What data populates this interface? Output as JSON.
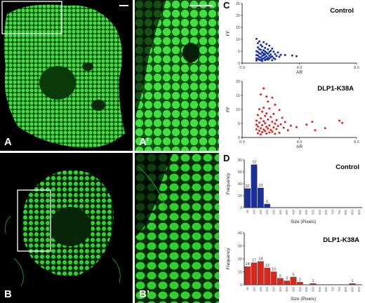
{
  "panels": {
    "A": "A",
    "A_prime": "A’",
    "B": "B",
    "B_prime": "B’",
    "C": "C",
    "D": "D"
  },
  "colors": {
    "control": "#1a2f9c",
    "mutant": "#d8281e",
    "cell": "#35d835",
    "background": "#000000"
  },
  "chart_data": [
    {
      "type": "scatter",
      "title": "Control",
      "xlabel": "AR",
      "ylabel": "FF",
      "xlim": [
        0,
        8
      ],
      "ylim": [
        0,
        25
      ],
      "xticks": [
        "0.0",
        "4.0",
        "8.0"
      ],
      "yticks": [
        "0",
        "5",
        "10",
        "15",
        "20",
        "25"
      ],
      "grid": false,
      "points": [
        [
          1.0,
          10.2
        ],
        [
          1.2,
          9.1
        ],
        [
          1.1,
          8.4
        ],
        [
          1.5,
          8.8
        ],
        [
          1.7,
          8.0
        ],
        [
          1.3,
          7.6
        ],
        [
          1.4,
          7.0
        ],
        [
          1.9,
          7.3
        ],
        [
          1.1,
          6.6
        ],
        [
          1.6,
          6.4
        ],
        [
          2.1,
          6.1
        ],
        [
          1.2,
          5.9
        ],
        [
          1.3,
          5.6
        ],
        [
          1.5,
          5.4
        ],
        [
          1.8,
          5.8
        ],
        [
          2.0,
          5.2
        ],
        [
          1.0,
          5.0
        ],
        [
          1.1,
          4.7
        ],
        [
          1.4,
          4.6
        ],
        [
          1.6,
          4.9
        ],
        [
          1.7,
          4.4
        ],
        [
          1.9,
          4.6
        ],
        [
          2.2,
          4.8
        ],
        [
          2.5,
          4.5
        ],
        [
          1.2,
          4.1
        ],
        [
          1.3,
          3.9
        ],
        [
          1.5,
          4.0
        ],
        [
          1.6,
          3.7
        ],
        [
          1.8,
          3.9
        ],
        [
          2.0,
          3.6
        ],
        [
          2.3,
          3.8
        ],
        [
          2.7,
          3.5
        ],
        [
          3.0,
          3.4
        ],
        [
          3.5,
          3.2
        ],
        [
          3.8,
          2.9
        ],
        [
          1.0,
          3.4
        ],
        [
          1.1,
          3.2
        ],
        [
          1.4,
          3.0
        ],
        [
          1.5,
          3.3
        ],
        [
          1.7,
          2.9
        ],
        [
          1.9,
          3.1
        ],
        [
          2.1,
          2.8
        ],
        [
          2.4,
          3.0
        ],
        [
          2.6,
          2.7
        ],
        [
          1.2,
          2.6
        ],
        [
          1.3,
          2.3
        ],
        [
          1.6,
          2.4
        ],
        [
          1.8,
          2.2
        ],
        [
          2.0,
          2.5
        ],
        [
          2.2,
          2.1
        ],
        [
          1.0,
          2.0
        ],
        [
          1.1,
          1.8
        ],
        [
          1.4,
          1.7
        ],
        [
          1.5,
          2.0
        ],
        [
          1.7,
          1.6
        ],
        [
          1.9,
          1.9
        ],
        [
          2.3,
          1.7
        ],
        [
          1.2,
          1.4
        ],
        [
          1.3,
          1.2
        ],
        [
          1.6,
          1.3
        ],
        [
          1.8,
          1.5
        ],
        [
          2.1,
          1.2
        ],
        [
          1.0,
          1.1
        ],
        [
          1.4,
          0.9
        ]
      ]
    },
    {
      "type": "scatter",
      "title": "DLP1-K38A",
      "xlabel": "AR",
      "ylabel": "FF",
      "xlim": [
        0,
        8
      ],
      "ylim": [
        0,
        20
      ],
      "xticks": [
        "0.0",
        "4.0",
        "8.0"
      ],
      "yticks": [
        "0",
        "5",
        "10",
        "15",
        "20"
      ],
      "grid": false,
      "points": [
        [
          1.5,
          17.5
        ],
        [
          1.3,
          15.3
        ],
        [
          1.7,
          14.6
        ],
        [
          2.1,
          14.2
        ],
        [
          1.8,
          12.8
        ],
        [
          2.3,
          11.7
        ],
        [
          1.5,
          10.6
        ],
        [
          1.2,
          10.1
        ],
        [
          1.9,
          10.3
        ],
        [
          2.6,
          9.8
        ],
        [
          1.4,
          9.2
        ],
        [
          1.7,
          8.6
        ],
        [
          2.2,
          8.4
        ],
        [
          1.1,
          8.0
        ],
        [
          1.6,
          7.7
        ],
        [
          2.0,
          7.3
        ],
        [
          2.8,
          7.0
        ],
        [
          1.3,
          6.8
        ],
        [
          1.8,
          6.4
        ],
        [
          2.4,
          6.2
        ],
        [
          1.0,
          6.0
        ],
        [
          1.5,
          5.8
        ],
        [
          2.1,
          5.6
        ],
        [
          3.0,
          5.5
        ],
        [
          1.2,
          5.3
        ],
        [
          1.6,
          5.1
        ],
        [
          2.3,
          4.9
        ],
        [
          2.7,
          4.7
        ],
        [
          1.0,
          4.6
        ],
        [
          1.4,
          4.4
        ],
        [
          1.9,
          4.3
        ],
        [
          2.5,
          4.1
        ],
        [
          3.4,
          4.2
        ],
        [
          1.1,
          3.9
        ],
        [
          1.7,
          3.8
        ],
        [
          2.2,
          3.6
        ],
        [
          2.9,
          3.5
        ],
        [
          1.3,
          3.3
        ],
        [
          1.8,
          3.2
        ],
        [
          2.4,
          3.0
        ],
        [
          1.0,
          2.9
        ],
        [
          1.5,
          2.8
        ],
        [
          2.0,
          2.7
        ],
        [
          3.2,
          2.6
        ],
        [
          1.2,
          2.4
        ],
        [
          1.6,
          2.3
        ],
        [
          2.1,
          2.1
        ],
        [
          1.4,
          1.9
        ],
        [
          1.9,
          1.8
        ],
        [
          2.6,
          1.7
        ],
        [
          1.1,
          1.5
        ],
        [
          1.7,
          1.4
        ],
        [
          2.3,
          1.3
        ],
        [
          1.3,
          1.1
        ],
        [
          4.5,
          4.6
        ],
        [
          4.9,
          5.6
        ],
        [
          5.1,
          2.6
        ],
        [
          5.8,
          3.3
        ],
        [
          6.8,
          6.0
        ],
        [
          7.0,
          5.2
        ],
        [
          3.8,
          3.7
        ]
      ]
    },
    {
      "type": "bar",
      "title": "Control",
      "xlabel": "Size (Pixels)",
      "ylabel": "Frequency",
      "ylim": [
        0,
        80
      ],
      "yticks": [
        "0",
        "20",
        "40",
        "60",
        "80"
      ],
      "categories": [
        "50",
        "100",
        "150",
        "200",
        "250",
        "300",
        "350",
        "400",
        "450",
        "500",
        "550",
        "600",
        "650",
        "700",
        "750",
        "800",
        "850",
        "900"
      ],
      "values": [
        32,
        72,
        33,
        6,
        0,
        0,
        0,
        0,
        0,
        0,
        0,
        0,
        0,
        0,
        0,
        0,
        0,
        0
      ],
      "data_labels": [
        "32",
        "72",
        "33",
        "6",
        "",
        "",
        "",
        "",
        "",
        "",
        "",
        "",
        "",
        "",
        "",
        "",
        "",
        ""
      ]
    },
    {
      "type": "bar",
      "title": "DLP1-K38A",
      "xlabel": "Size (Pixels)",
      "ylabel": "Frequency",
      "ylim": [
        0,
        40
      ],
      "yticks": [
        "0",
        "10",
        "20",
        "30",
        "40"
      ],
      "categories": [
        "50",
        "100",
        "150",
        "200",
        "250",
        "300",
        "350",
        "400",
        "450",
        "500",
        "550",
        "600",
        "650",
        "700",
        "750",
        "800",
        "850",
        "900"
      ],
      "values": [
        14,
        17,
        18,
        13,
        10,
        5,
        3,
        6,
        2,
        0,
        1,
        0,
        0,
        0,
        0,
        0,
        1,
        0
      ],
      "data_labels": [
        "14",
        "17",
        "18",
        "13",
        "10",
        "5",
        "3",
        "6",
        "2",
        "",
        "1",
        "",
        "",
        "",
        "",
        "",
        "1",
        ""
      ]
    }
  ]
}
